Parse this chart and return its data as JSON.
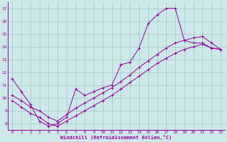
{
  "xlabel": "Windchill (Refroidissement éolien,°C)",
  "xlim": [
    -0.5,
    23.5
  ],
  "ylim": [
    7.5,
    17.5
  ],
  "xticks": [
    0,
    1,
    2,
    3,
    4,
    5,
    6,
    7,
    8,
    9,
    10,
    11,
    12,
    13,
    14,
    15,
    16,
    17,
    18,
    19,
    20,
    21,
    22,
    23
  ],
  "yticks": [
    8,
    9,
    10,
    11,
    12,
    13,
    14,
    15,
    16,
    17
  ],
  "bg_color": "#cce8e8",
  "grid_color": "#aacccc",
  "line_color": "#990099",
  "line1_x": [
    0,
    1,
    2,
    3,
    4,
    5,
    6,
    7,
    8,
    9,
    10,
    11,
    12,
    13,
    14,
    15,
    16,
    17,
    18,
    19,
    20,
    21,
    22,
    23
  ],
  "line1_y": [
    11.5,
    10.5,
    9.5,
    8.2,
    7.8,
    8.0,
    8.5,
    10.7,
    10.2,
    10.5,
    10.8,
    11.0,
    12.6,
    12.8,
    13.9,
    15.8,
    16.5,
    17.0,
    17.0,
    14.5,
    14.3,
    14.3,
    13.9,
    13.8
  ],
  "line2_x": [
    0,
    1,
    2,
    3,
    4,
    5,
    6,
    7,
    8,
    9,
    10,
    11,
    12,
    13,
    14,
    15,
    16,
    17,
    18,
    19,
    20,
    21,
    22,
    23
  ],
  "line2_y": [
    10.2,
    9.8,
    9.3,
    9.0,
    8.5,
    8.2,
    8.7,
    9.2,
    9.6,
    10.0,
    10.4,
    10.8,
    11.3,
    11.8,
    12.4,
    12.9,
    13.4,
    13.9,
    14.3,
    14.5,
    14.7,
    14.8,
    14.3,
    13.8
  ],
  "line3_x": [
    0,
    1,
    2,
    3,
    4,
    5,
    6,
    7,
    8,
    9,
    10,
    11,
    12,
    13,
    14,
    15,
    16,
    17,
    18,
    19,
    20,
    21,
    22,
    23
  ],
  "line3_y": [
    9.8,
    9.3,
    8.8,
    8.5,
    8.0,
    7.8,
    8.2,
    8.6,
    9.0,
    9.4,
    9.8,
    10.2,
    10.7,
    11.2,
    11.7,
    12.2,
    12.7,
    13.1,
    13.5,
    13.8,
    14.0,
    14.2,
    13.9,
    13.8
  ]
}
